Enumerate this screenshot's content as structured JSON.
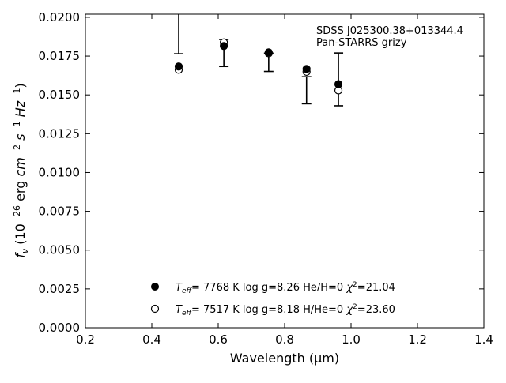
{
  "chart_data": {
    "type": "scatter",
    "xlabel": "Wavelength (μm)",
    "ylabel": "f_ν (10^-26 erg cm^-2 s^-1 Hz^-1)",
    "xlim": [
      0.2,
      1.4
    ],
    "ylim": [
      0.0,
      0.0202
    ],
    "x_ticks": [
      0.2,
      0.4,
      0.6,
      0.8,
      1.0,
      1.2,
      1.4
    ],
    "x_tick_labels": [
      "0.2",
      "0.4",
      "0.6",
      "0.8",
      "1.0",
      "1.2",
      "1.4"
    ],
    "y_ticks": [
      0.0,
      0.0025,
      0.005,
      0.0075,
      0.01,
      0.0125,
      0.015,
      0.0175,
      0.02
    ],
    "y_tick_labels": [
      "0.0000",
      "0.0025",
      "0.0050",
      "0.0075",
      "0.0100",
      "0.0125",
      "0.0150",
      "0.0175",
      "0.0200"
    ],
    "grid": false,
    "annotation": [
      "SDSS J025300.38+013344.4",
      "Pan-STARRS grizy"
    ],
    "observed": {
      "x": [
        0.481,
        0.617,
        0.752,
        0.866,
        0.962
      ],
      "y": [
        0.021,
        0.0177,
        0.0171,
        0.0153,
        0.016
      ],
      "err": [
        0.00335,
        0.00087,
        0.00059,
        0.00087,
        0.0017
      ]
    },
    "series": [
      {
        "name": "T_eff= 7768 K log g=8.26 He/H=0 χ²=21.04",
        "marker": "filled-circle",
        "x": [
          0.481,
          0.617,
          0.752,
          0.866,
          0.962
        ],
        "y": [
          0.01683,
          0.01815,
          0.01774,
          0.01667,
          0.01569
        ]
      },
      {
        "name": "T_eff= 7517 K log g=8.18 H/He=0 χ²=23.60",
        "marker": "open-circle",
        "x": [
          0.481,
          0.617,
          0.752,
          0.866,
          0.962
        ],
        "y": [
          0.01662,
          0.01838,
          0.01768,
          0.01649,
          0.01529
        ]
      }
    ],
    "legend": {
      "placement": "lower-center",
      "entries": [
        {
          "teff": "7768",
          "logg": "8.26",
          "comp": "He/H=0",
          "chi2": "21.04"
        },
        {
          "teff": "7517",
          "logg": "8.18",
          "comp": "H/He=0",
          "chi2": "23.60"
        }
      ]
    }
  }
}
